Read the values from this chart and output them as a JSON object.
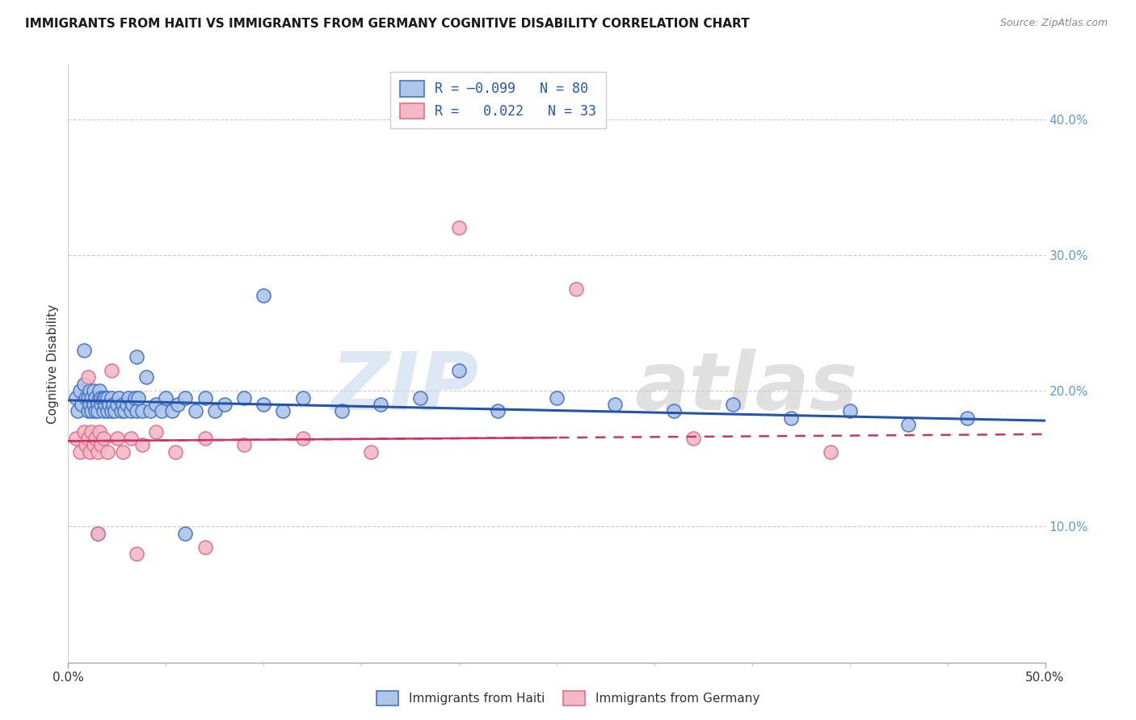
{
  "title": "IMMIGRANTS FROM HAITI VS IMMIGRANTS FROM GERMANY COGNITIVE DISABILITY CORRELATION CHART",
  "source": "Source: ZipAtlas.com",
  "ylabel": "Cognitive Disability",
  "xlim": [
    0.0,
    0.5
  ],
  "ylim": [
    0.0,
    0.44
  ],
  "haiti_color": "#aec6e8",
  "haiti_edge_color": "#4472c4",
  "germany_color": "#f4b8c8",
  "germany_edge_color": "#d9748a",
  "haiti_R": -0.099,
  "haiti_N": 80,
  "germany_R": 0.022,
  "germany_N": 33,
  "legend_label_haiti": "Immigrants from Haiti",
  "legend_label_germany": "Immigrants from Germany",
  "haiti_line_color": "#2255aa",
  "germany_line_color": "#cc3366",
  "haiti_x": [
    0.004,
    0.005,
    0.006,
    0.007,
    0.008,
    0.009,
    0.01,
    0.01,
    0.011,
    0.011,
    0.012,
    0.012,
    0.013,
    0.013,
    0.014,
    0.014,
    0.015,
    0.015,
    0.016,
    0.016,
    0.017,
    0.017,
    0.018,
    0.018,
    0.019,
    0.019,
    0.02,
    0.02,
    0.021,
    0.022,
    0.022,
    0.023,
    0.024,
    0.025,
    0.026,
    0.027,
    0.028,
    0.029,
    0.03,
    0.031,
    0.032,
    0.033,
    0.034,
    0.035,
    0.036,
    0.038,
    0.04,
    0.042,
    0.045,
    0.048,
    0.05,
    0.053,
    0.056,
    0.06,
    0.065,
    0.07,
    0.075,
    0.08,
    0.09,
    0.1,
    0.11,
    0.12,
    0.14,
    0.16,
    0.18,
    0.2,
    0.22,
    0.25,
    0.28,
    0.31,
    0.34,
    0.37,
    0.4,
    0.43,
    0.46,
    0.008,
    0.015,
    0.035,
    0.06,
    0.1
  ],
  "haiti_y": [
    0.195,
    0.185,
    0.2,
    0.19,
    0.205,
    0.195,
    0.185,
    0.195,
    0.19,
    0.2,
    0.195,
    0.185,
    0.19,
    0.2,
    0.185,
    0.195,
    0.19,
    0.185,
    0.195,
    0.2,
    0.19,
    0.195,
    0.185,
    0.195,
    0.19,
    0.195,
    0.185,
    0.195,
    0.19,
    0.185,
    0.195,
    0.19,
    0.185,
    0.19,
    0.195,
    0.185,
    0.19,
    0.185,
    0.19,
    0.195,
    0.185,
    0.19,
    0.195,
    0.185,
    0.195,
    0.185,
    0.21,
    0.185,
    0.19,
    0.185,
    0.195,
    0.185,
    0.19,
    0.195,
    0.185,
    0.195,
    0.185,
    0.19,
    0.195,
    0.19,
    0.185,
    0.195,
    0.185,
    0.19,
    0.195,
    0.215,
    0.185,
    0.195,
    0.19,
    0.185,
    0.19,
    0.18,
    0.185,
    0.175,
    0.18,
    0.23,
    0.095,
    0.225,
    0.095,
    0.27
  ],
  "germany_x": [
    0.004,
    0.006,
    0.008,
    0.009,
    0.01,
    0.011,
    0.012,
    0.013,
    0.014,
    0.015,
    0.016,
    0.017,
    0.018,
    0.02,
    0.022,
    0.025,
    0.028,
    0.032,
    0.038,
    0.045,
    0.055,
    0.07,
    0.09,
    0.12,
    0.155,
    0.2,
    0.26,
    0.32,
    0.39,
    0.01,
    0.015,
    0.035,
    0.07
  ],
  "germany_y": [
    0.165,
    0.155,
    0.17,
    0.16,
    0.165,
    0.155,
    0.17,
    0.16,
    0.165,
    0.155,
    0.17,
    0.16,
    0.165,
    0.155,
    0.215,
    0.165,
    0.155,
    0.165,
    0.16,
    0.17,
    0.155,
    0.165,
    0.16,
    0.165,
    0.155,
    0.32,
    0.275,
    0.165,
    0.155,
    0.21,
    0.095,
    0.08,
    0.085
  ],
  "haiti_line_x": [
    0.0,
    0.5
  ],
  "haiti_line_y": [
    0.193,
    0.178
  ],
  "germany_line_x": [
    0.0,
    0.5
  ],
  "germany_line_y": [
    0.163,
    0.168
  ]
}
